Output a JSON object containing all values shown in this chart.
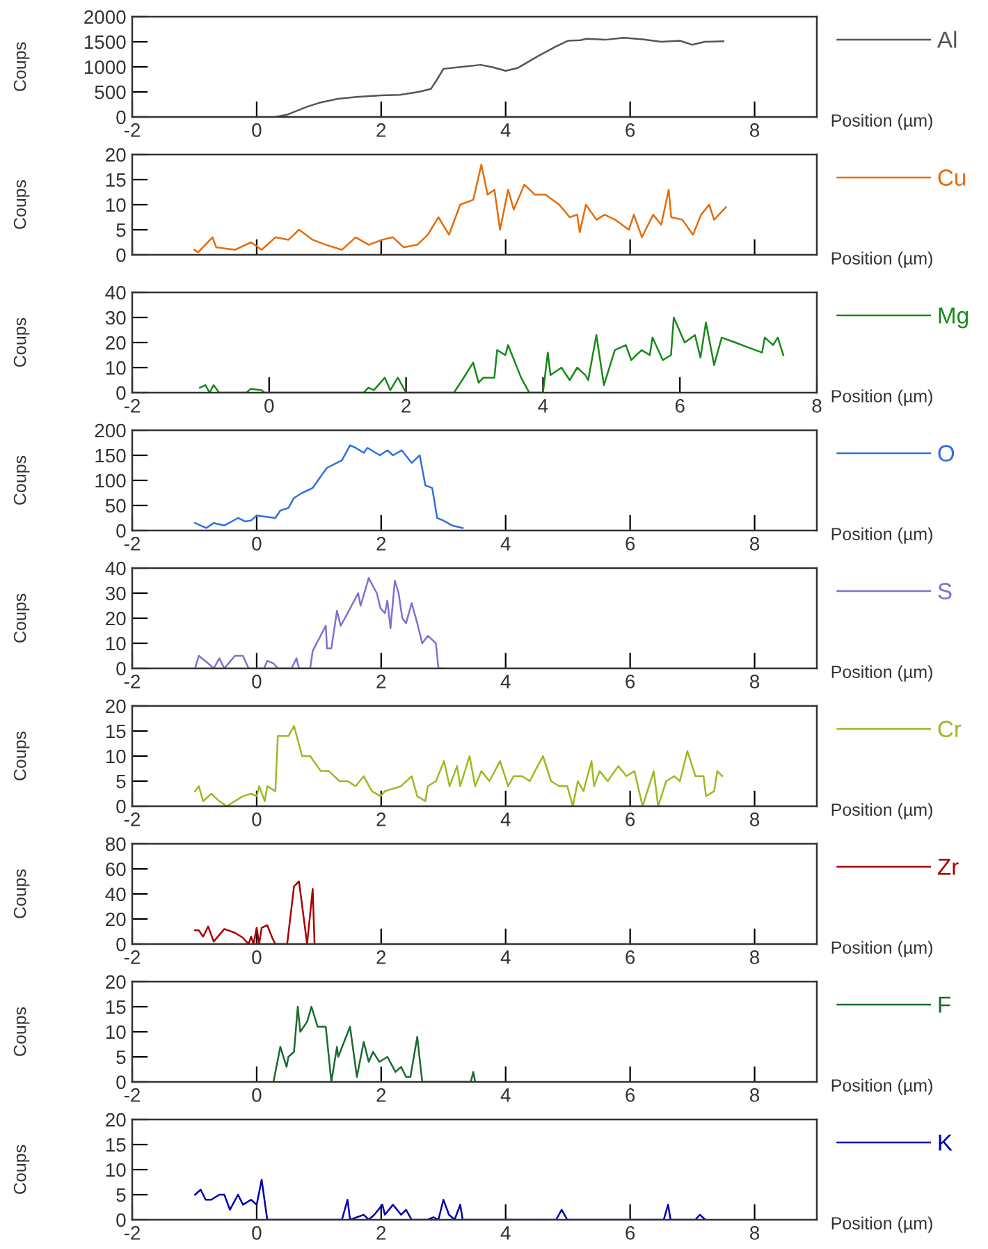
{
  "chart_data": [
    {
      "type": "line",
      "xlabel": "Position (µm)",
      "ylabel": "Coups",
      "legend": "right",
      "xlim": [
        -2,
        9
      ],
      "xticks": [
        -2,
        0,
        2,
        4,
        6,
        8
      ],
      "ylim": [
        0,
        2000
      ],
      "yticks": [
        0,
        500,
        1000,
        1500,
        2000
      ],
      "series": [
        {
          "name": "Al",
          "color": "#555555",
          "x": [
            0.3,
            0.5,
            0.8,
            1.0,
            1.3,
            1.6,
            2.0,
            2.3,
            2.6,
            2.8,
            2.9,
            3.0,
            3.3,
            3.6,
            3.8,
            4.0,
            4.2,
            4.5,
            4.8,
            5.0,
            5.2,
            5.3,
            5.6,
            5.9,
            6.2,
            6.5,
            6.8,
            7.0,
            7.2,
            7.5
          ],
          "values": [
            0,
            50,
            200,
            280,
            360,
            400,
            430,
            440,
            500,
            560,
            750,
            960,
            1000,
            1040,
            990,
            920,
            980,
            1200,
            1400,
            1520,
            1530,
            1560,
            1540,
            1580,
            1550,
            1500,
            1520,
            1440,
            1500,
            1510
          ]
        }
      ]
    },
    {
      "type": "line",
      "xlabel": "Position (µm)",
      "ylabel": "Coups",
      "legend": "right",
      "tick_labels": "y",
      "xlim": [
        -2,
        9
      ],
      "xticks": [
        -2,
        0,
        2,
        4,
        6,
        8
      ],
      "ylim": [
        0,
        20
      ],
      "yticks": [
        0,
        5,
        10,
        15,
        20
      ],
      "series": [
        {
          "name": "Cu",
          "color": "#e46c0a",
          "x": [
            -1.0,
            -0.94,
            -0.71,
            -0.65,
            -0.35,
            -0.09,
            0.08,
            0.3,
            0.51,
            0.68,
            0.9,
            1.11,
            1.37,
            1.59,
            1.8,
            2.02,
            2.19,
            2.36,
            2.58,
            2.75,
            2.92,
            3.09,
            3.27,
            3.48,
            3.61,
            3.71,
            3.82,
            3.91,
            4.04,
            4.13,
            4.3,
            4.47,
            4.64,
            4.86,
            5.03,
            5.15,
            5.19,
            5.29,
            5.46,
            5.59,
            5.76,
            5.98,
            6.06,
            6.19,
            6.37,
            6.5,
            6.62,
            6.66,
            6.84,
            7.01,
            7.14,
            7.27,
            7.35,
            7.54
          ],
          "values": [
            1,
            0.5,
            3.5,
            1.5,
            1,
            2.5,
            1,
            3.5,
            3,
            5,
            3,
            2,
            1,
            3.5,
            2,
            3,
            3.5,
            1.5,
            2,
            4,
            7.5,
            4,
            10,
            11,
            18,
            12,
            13,
            5,
            13,
            9,
            14,
            12,
            12,
            10,
            7.5,
            8,
            4.5,
            10,
            7,
            8,
            7,
            5,
            8,
            3.5,
            8,
            6,
            13,
            7.5,
            7,
            4,
            8,
            10,
            7,
            9.5
          ]
        }
      ]
    },
    {
      "type": "line",
      "xlabel": "Position (µm)",
      "ylabel": "Coups",
      "legend": "right",
      "xlim": [
        -2,
        8
      ],
      "xticks": [
        -2,
        0,
        2,
        4,
        6,
        8
      ],
      "ylim": [
        0,
        40
      ],
      "yticks": [
        0,
        10,
        20,
        30,
        40
      ],
      "series": [
        {
          "name": "Mg",
          "color": "#168a16",
          "x": [
            -1.01,
            -0.93,
            -0.87,
            -0.81,
            -0.73,
            -0.33,
            -0.27,
            -0.11,
            -0.07,
            1.38,
            1.45,
            1.53,
            1.69,
            1.77,
            1.88,
            2.0,
            2.7,
            2.82,
            2.98,
            3.06,
            3.13,
            3.29,
            3.33,
            3.45,
            3.49,
            3.68,
            3.8,
            4.0,
            4.07,
            4.11,
            4.27,
            4.39,
            4.5,
            4.62,
            4.66,
            4.78,
            4.89,
            5.05,
            5.21,
            5.29,
            5.44,
            5.56,
            5.6,
            5.75,
            5.87,
            5.91,
            6.07,
            6.22,
            6.3,
            6.38,
            6.5,
            6.61,
            6.81,
            7.0,
            7.2,
            7.24,
            7.36,
            7.43,
            7.51
          ],
          "values": [
            2,
            3,
            0,
            3,
            0,
            0,
            1.5,
            1,
            0,
            0,
            2,
            1,
            6,
            1,
            6,
            0,
            0,
            5,
            12,
            4,
            6,
            6,
            17,
            15,
            19,
            6,
            0,
            0,
            16,
            7,
            10,
            5,
            10,
            7,
            5,
            23,
            3,
            17,
            19,
            13,
            17,
            15,
            22,
            13,
            15,
            30,
            20,
            23,
            14,
            28,
            11,
            22,
            20,
            18,
            16,
            22,
            19,
            22,
            15
          ]
        }
      ]
    },
    {
      "type": "line",
      "xlabel": "Position (µm)",
      "ylabel": "Coups",
      "legend": "right",
      "xlim": [
        -2,
        9
      ],
      "xticks": [
        -2,
        0,
        2,
        4,
        6,
        8
      ],
      "ylim": [
        0,
        200
      ],
      "yticks": [
        0,
        50,
        100,
        150,
        200
      ],
      "series": [
        {
          "name": "O",
          "color": "#3070e0",
          "x": [
            -0.99,
            -0.9,
            -0.81,
            -0.69,
            -0.52,
            -0.3,
            -0.18,
            -0.09,
            0.0,
            0.3,
            0.38,
            0.51,
            0.6,
            0.73,
            0.9,
            1.07,
            1.13,
            1.37,
            1.5,
            1.59,
            1.72,
            1.78,
            1.98,
            2.1,
            2.19,
            2.33,
            2.49,
            2.62,
            2.71,
            2.82,
            2.9,
            3.0,
            3.14,
            3.31
          ],
          "values": [
            15,
            10,
            5,
            15,
            10,
            25,
            18,
            20,
            30,
            25,
            40,
            45,
            65,
            75,
            85,
            115,
            125,
            140,
            170,
            165,
            155,
            165,
            150,
            160,
            150,
            160,
            135,
            150,
            90,
            85,
            25,
            20,
            10,
            5
          ]
        }
      ]
    },
    {
      "type": "line",
      "xlabel": "Position (µm)",
      "ylabel": "Coups",
      "legend": "right",
      "xlim": [
        -2,
        9
      ],
      "xticks": [
        -2,
        0,
        2,
        4,
        6,
        8
      ],
      "ylim": [
        0,
        40
      ],
      "yticks": [
        0,
        10,
        20,
        30,
        40
      ],
      "series": [
        {
          "name": "S",
          "color": "#8070d0",
          "x": [
            -0.99,
            -0.93,
            -0.78,
            -0.69,
            -0.6,
            -0.52,
            -0.35,
            -0.22,
            -0.13,
            0.0,
            0.12,
            0.17,
            0.27,
            0.34,
            0.56,
            0.64,
            0.68,
            0.86,
            0.9,
            1.11,
            1.13,
            1.2,
            1.29,
            1.35,
            1.46,
            1.63,
            1.67,
            1.8,
            1.93,
            1.99,
            2.06,
            2.1,
            2.15,
            2.22,
            2.28,
            2.34,
            2.4,
            2.49,
            2.58,
            2.66,
            2.75,
            2.88,
            2.92,
            3.01
          ],
          "values": [
            0,
            5,
            2,
            0,
            4,
            0,
            5,
            5,
            0,
            0,
            0,
            3,
            2,
            0,
            0,
            4,
            0,
            0,
            7,
            17,
            8,
            8,
            23,
            17,
            22,
            30,
            25,
            36,
            30,
            24,
            22,
            27,
            16,
            35,
            30,
            20,
            18,
            26,
            18,
            10,
            13,
            10,
            0,
            0
          ]
        }
      ]
    },
    {
      "type": "line",
      "xlabel": "Position (µm)",
      "ylabel": "Coups",
      "legend": "right",
      "xlim": [
        -2,
        9
      ],
      "xticks": [
        -2,
        0,
        2,
        4,
        6,
        8
      ],
      "ylim": [
        0,
        20
      ],
      "yticks": [
        0,
        5,
        10,
        15,
        20
      ],
      "series": [
        {
          "name": "Cr",
          "color": "#99bb22",
          "x": [
            -0.99,
            -0.93,
            -0.86,
            -0.73,
            -0.6,
            -0.48,
            -0.35,
            -0.22,
            -0.09,
            0.0,
            0.04,
            0.13,
            0.17,
            0.3,
            0.34,
            0.51,
            0.6,
            0.73,
            0.86,
            1.03,
            1.16,
            1.33,
            1.46,
            1.59,
            1.72,
            1.85,
            1.99,
            2.06,
            2.32,
            2.49,
            2.58,
            2.71,
            2.75,
            2.88,
            3.01,
            3.1,
            3.22,
            3.27,
            3.42,
            3.51,
            3.61,
            3.74,
            3.91,
            4.04,
            4.13,
            4.26,
            4.39,
            4.47,
            4.6,
            4.73,
            4.86,
            4.99,
            5.08,
            5.16,
            5.25,
            5.38,
            5.42,
            5.51,
            5.64,
            5.81,
            5.94,
            6.07,
            6.2,
            6.38,
            6.45,
            6.58,
            6.71,
            6.8,
            6.92,
            7.05,
            7.18,
            7.22,
            7.35,
            7.4,
            7.48
          ],
          "values": [
            3,
            4,
            1,
            2.5,
            1,
            0,
            1,
            2,
            2.5,
            2,
            4,
            1,
            4,
            3,
            14,
            14,
            16,
            10,
            10,
            7,
            7,
            5,
            5,
            4,
            6,
            3,
            2,
            3,
            4,
            6,
            2,
            1,
            4,
            5,
            9,
            4,
            8,
            4,
            10,
            4,
            7,
            5,
            9,
            4,
            6,
            6,
            5,
            7,
            10,
            5,
            4,
            4,
            0,
            5,
            3,
            9,
            4,
            7,
            5,
            8,
            6,
            7,
            0,
            7,
            0,
            5,
            6,
            5,
            11,
            6,
            6,
            2,
            3,
            7,
            6
          ]
        }
      ]
    },
    {
      "type": "line",
      "xlabel": "Position (µm)",
      "ylabel": "Coups",
      "legend": "right",
      "xlim": [
        -2,
        9
      ],
      "xticks": [
        -2,
        0,
        2,
        4,
        6,
        8
      ],
      "ylim": [
        0,
        80
      ],
      "yticks": [
        0,
        20,
        40,
        60,
        80
      ],
      "series": [
        {
          "name": "Zr",
          "color": "#aa0000",
          "x": [
            -0.99,
            -0.93,
            -0.86,
            -0.78,
            -0.69,
            -0.52,
            -0.35,
            -0.22,
            -0.13,
            -0.09,
            -0.05,
            0.0,
            0.04,
            0.08,
            0.17,
            0.25,
            0.3,
            0.49,
            0.6,
            0.68,
            0.81,
            0.9,
            0.93
          ],
          "values": [
            11,
            11,
            6,
            14,
            2,
            12,
            9,
            5,
            0,
            6,
            0,
            13,
            0,
            13,
            15,
            5,
            0,
            0,
            46,
            50,
            0,
            44,
            0
          ]
        }
      ]
    },
    {
      "type": "line",
      "xlabel": "Position (µm)",
      "ylabel": "Coups",
      "legend": "right",
      "xlim": [
        -2,
        9
      ],
      "xticks": [
        -2,
        0,
        2,
        4,
        6,
        8
      ],
      "ylim": [
        0,
        20
      ],
      "yticks": [
        0,
        5,
        10,
        15,
        20
      ],
      "series": [
        {
          "name": "F",
          "color": "#1a6b30",
          "x": [
            0.27,
            0.38,
            0.48,
            0.51,
            0.6,
            0.66,
            0.7,
            0.81,
            0.88,
            0.98,
            1.11,
            1.2,
            1.29,
            1.31,
            1.5,
            1.61,
            1.72,
            1.8,
            1.87,
            1.97,
            2.1,
            2.23,
            2.32,
            2.4,
            2.47,
            2.58,
            2.66,
            3.44,
            3.48,
            3.51
          ],
          "values": [
            0,
            7,
            3,
            5,
            6,
            15,
            10,
            12,
            15,
            11,
            11,
            0,
            7,
            5,
            11,
            1,
            8,
            4,
            6,
            4,
            5,
            2,
            3,
            1,
            1,
            9,
            0,
            0,
            2,
            0
          ]
        }
      ]
    },
    {
      "type": "line",
      "xlabel": "Position (µm)",
      "ylabel": "Coups",
      "legend": "right",
      "xlim": [
        -2,
        9
      ],
      "xticks": [
        -2,
        0,
        2,
        4,
        6,
        8
      ],
      "ylim": [
        0,
        20
      ],
      "yticks": [
        0,
        5,
        10,
        15,
        20
      ],
      "series": [
        {
          "name": "K",
          "color": "#0000aa",
          "x": [
            -0.99,
            -0.9,
            -0.82,
            -0.73,
            -0.6,
            -0.52,
            -0.43,
            -0.3,
            -0.22,
            -0.09,
            0.0,
            0.08,
            0.17,
            0.3,
            1.37,
            1.46,
            1.5,
            1.72,
            1.8,
            1.89,
            2.02,
            2.06,
            2.19,
            2.32,
            2.4,
            2.49,
            2.75,
            2.84,
            2.92,
            3.0,
            3.09,
            3.18,
            3.27,
            3.31,
            4.81,
            4.9,
            4.99,
            6.54,
            6.61,
            6.65,
            7.05,
            7.12,
            7.21
          ],
          "values": [
            5,
            6,
            4,
            4,
            5,
            5,
            2,
            5,
            3,
            4,
            3,
            8,
            0,
            0,
            0,
            4,
            0,
            1,
            0,
            1,
            3,
            1,
            3,
            1,
            2,
            0,
            0,
            0.5,
            0,
            4,
            1,
            0,
            3,
            0,
            0,
            2,
            0,
            0,
            3,
            0,
            0,
            1,
            0
          ]
        }
      ]
    }
  ]
}
